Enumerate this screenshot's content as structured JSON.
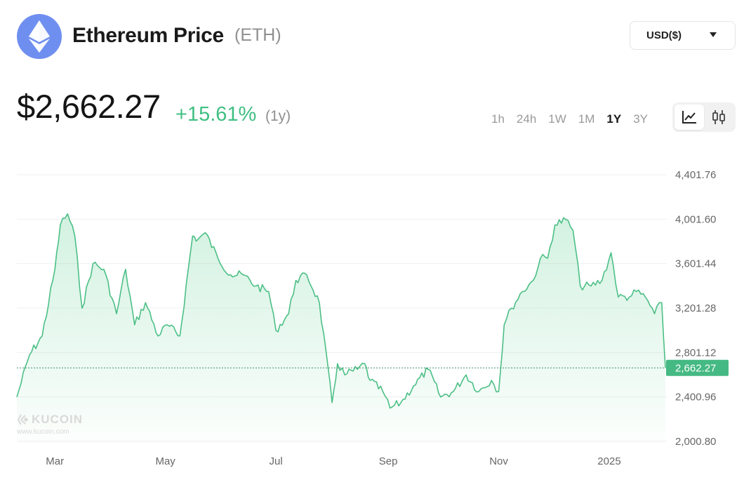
{
  "header": {
    "logo_icon": "ethereum-diamond-icon",
    "title": "Ethereum Price",
    "symbol": "(ETH)",
    "currency_label": "USD($)"
  },
  "summary": {
    "price": "$2,662.27",
    "change": "+15.61%",
    "change_period": "(1y)"
  },
  "ranges": [
    {
      "label": "1h",
      "active": false
    },
    {
      "label": "24h",
      "active": false
    },
    {
      "label": "1W",
      "active": false
    },
    {
      "label": "1M",
      "active": false
    },
    {
      "label": "1Y",
      "active": true
    },
    {
      "label": "3Y",
      "active": false
    }
  ],
  "view_toggle": {
    "line": "line-chart-icon",
    "candle": "candlestick-chart-icon",
    "active": "line"
  },
  "watermark": {
    "name": "KUCOIN",
    "url": "www.kucoin.com"
  },
  "colors": {
    "accent": "#3fbf82",
    "line": "#4cbf86",
    "logo": "#6f8ff0"
  },
  "chart_data": {
    "type": "area",
    "x_ticks": [
      "Mar",
      "May",
      "Jul",
      "Sep",
      "Nov",
      "2025"
    ],
    "y_ticks": [
      "4,401.76",
      "4,001.60",
      "3,601.44",
      "3,201.28",
      "2,801.12",
      "2,400.96",
      "2,000.80"
    ],
    "ylim": [
      2000.8,
      4401.76
    ],
    "current_value": 2662.27,
    "current_label": "2,662.27",
    "grid": true,
    "x": [
      "2024-02-13",
      "2024-02-20",
      "2024-02-27",
      "2024-03-05",
      "2024-03-08",
      "2024-03-12",
      "2024-03-16",
      "2024-03-20",
      "2024-03-26",
      "2024-04-01",
      "2024-04-08",
      "2024-04-13",
      "2024-04-18",
      "2024-04-24",
      "2024-05-01",
      "2024-05-06",
      "2024-05-13",
      "2024-05-20",
      "2024-05-23",
      "2024-05-27",
      "2024-06-03",
      "2024-06-10",
      "2024-06-17",
      "2024-06-24",
      "2024-07-01",
      "2024-07-05",
      "2024-07-12",
      "2024-07-16",
      "2024-07-22",
      "2024-07-29",
      "2024-08-05",
      "2024-08-08",
      "2024-08-12",
      "2024-08-19",
      "2024-08-23",
      "2024-08-26",
      "2024-09-02",
      "2024-09-06",
      "2024-09-12",
      "2024-09-19",
      "2024-09-27",
      "2024-10-04",
      "2024-10-11",
      "2024-10-18",
      "2024-10-25",
      "2024-11-01",
      "2024-11-05",
      "2024-11-08",
      "2024-11-12",
      "2024-11-18",
      "2024-11-24",
      "2024-11-28",
      "2024-12-02",
      "2024-12-06",
      "2024-12-12",
      "2024-12-16",
      "2024-12-20",
      "2024-12-26",
      "2025-01-01",
      "2025-01-06",
      "2025-01-10",
      "2025-01-16",
      "2025-01-20",
      "2025-01-25",
      "2025-01-30",
      "2025-02-03",
      "2025-02-05"
    ],
    "values": [
      2400,
      2780,
      2950,
      3550,
      3950,
      4050,
      3850,
      3200,
      3600,
      3550,
      3150,
      3550,
      3050,
      3250,
      2950,
      3050,
      2950,
      3850,
      3820,
      3880,
      3650,
      3500,
      3500,
      3400,
      3350,
      3000,
      3150,
      3450,
      3500,
      3250,
      2350,
      2700,
      2600,
      2650,
      2700,
      2550,
      2450,
      2300,
      2350,
      2500,
      2650,
      2400,
      2450,
      2600,
      2450,
      2550,
      2450,
      3050,
      3200,
      3350,
      3450,
      3650,
      3650,
      3950,
      4000,
      3900,
      3400,
      3400,
      3450,
      3700,
      3300,
      3300,
      3350,
      3300,
      3150,
      3250,
      2662
    ]
  }
}
